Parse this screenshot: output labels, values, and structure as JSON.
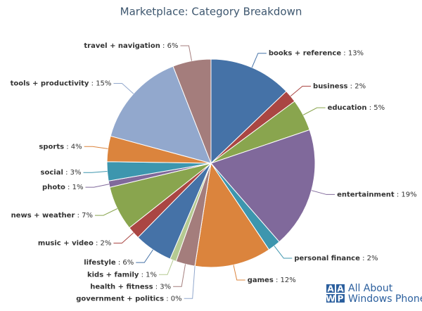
{
  "chart_data": {
    "type": "pie",
    "title": "Marketplace: Category Breakdown",
    "categories": [
      "books + reference",
      "business",
      "education",
      "entertainment",
      "personal finance",
      "games",
      "government + politics",
      "health + fitness",
      "kids + family",
      "lifestyle",
      "music + video",
      "news + weather",
      "photo",
      "social",
      "sports",
      "tools + productivity",
      "travel + navigation"
    ],
    "values": [
      13,
      2,
      5,
      19,
      2,
      12,
      0,
      3,
      1,
      6,
      2,
      7,
      1,
      3,
      4,
      15,
      6
    ],
    "value_labels": [
      " : 13%",
      " : 2%",
      " : 5%",
      " : 19%",
      " : 2%",
      " : 12%",
      " : 0%",
      " : 3%",
      " : 1%",
      " : 6%",
      " : 2%",
      " : 7%",
      " : 1%",
      " : 3%",
      " : 4%",
      " : 15%",
      " : 6%"
    ],
    "colors": [
      "#4572A7",
      "#AA4643",
      "#89A54E",
      "#80699B",
      "#3D96AE",
      "#DB843D",
      "#92A8CD",
      "#A47D7C",
      "#B5CA92",
      "#4572A7",
      "#AA4643",
      "#89A54E",
      "#80699B",
      "#3D96AE",
      "#DB843D",
      "#92A8CD",
      "#A47D7C"
    ]
  },
  "logo": {
    "badge": [
      "A",
      "A",
      "W",
      "P"
    ],
    "lines": [
      "All About",
      "Windows Phone"
    ]
  }
}
